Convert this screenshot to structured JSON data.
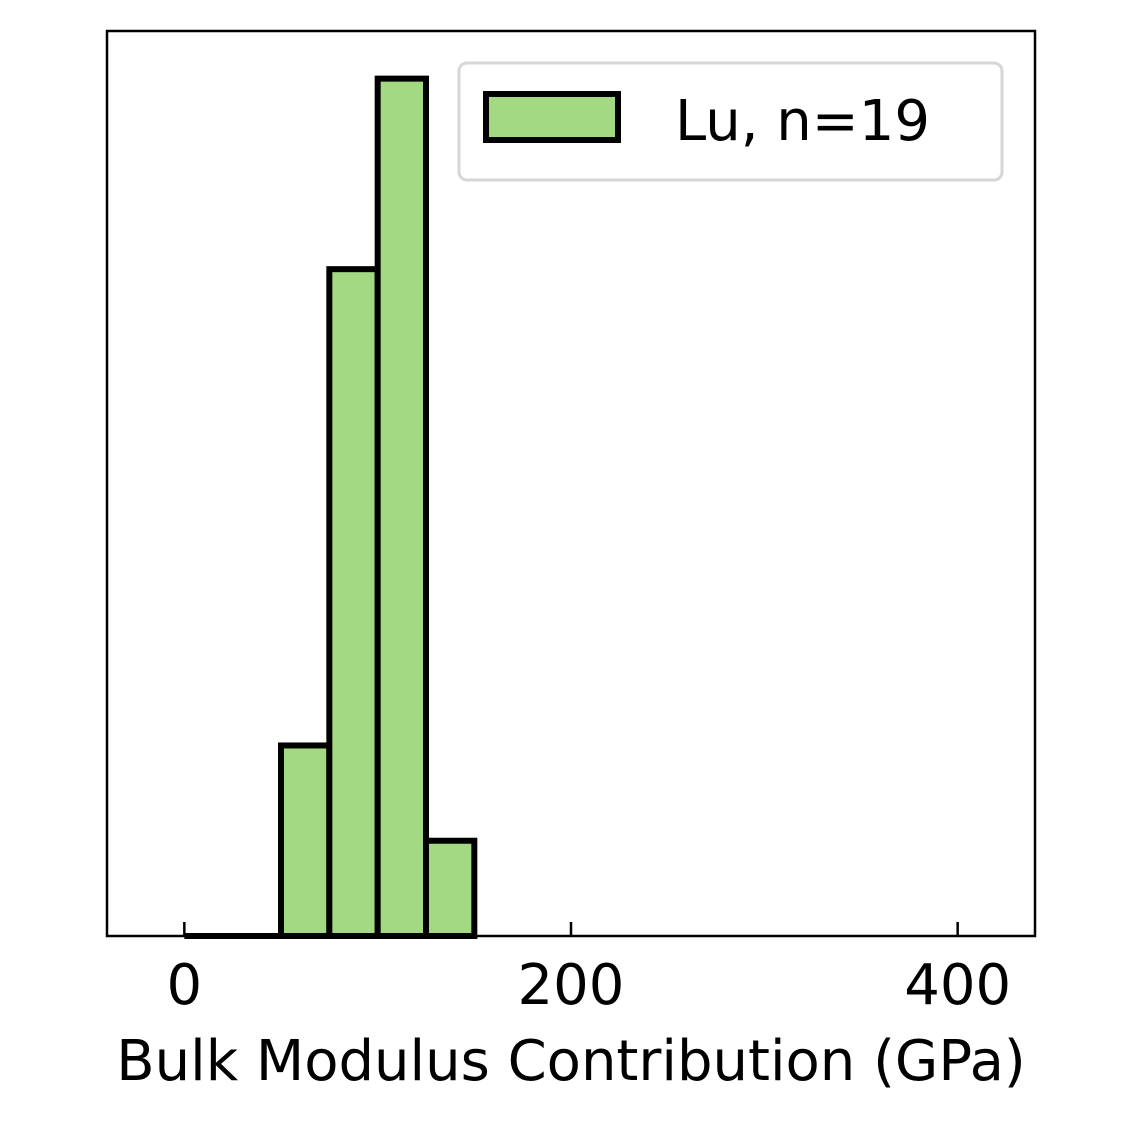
{
  "chart_data": {
    "type": "bar",
    "subtype": "histogram",
    "xlabel": "Bulk Modulus Contribution (GPa)",
    "ylabel": "",
    "xlim": [
      -40,
      440
    ],
    "ylim": [
      0,
      9.5
    ],
    "xticks": [
      0,
      200,
      400
    ],
    "y_ticks_shown": false,
    "grid": false,
    "legend": {
      "position": "top-right",
      "entries": [
        "Lu, n=19"
      ]
    },
    "series": [
      {
        "name": "Lu, n=19",
        "color": "#a3d982",
        "edgecolor": "#000000",
        "bins": [
          {
            "x0": 0,
            "x1": 50,
            "count": 0
          },
          {
            "x0": 50,
            "x1": 75,
            "count": 2
          },
          {
            "x0": 75,
            "x1": 100,
            "count": 7
          },
          {
            "x0": 100,
            "x1": 125,
            "count": 9
          },
          {
            "x0": 125,
            "x1": 150,
            "count": 1
          }
        ]
      }
    ]
  }
}
